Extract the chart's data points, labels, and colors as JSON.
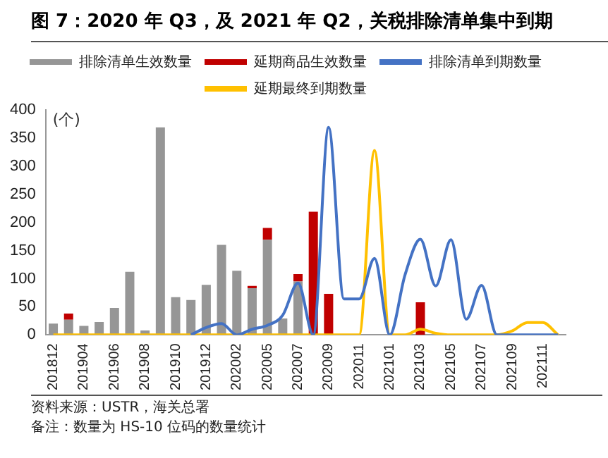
{
  "chart_data": {
    "type": "bar",
    "title": "图 7：2020 年 Q3，及 2021 年 Q2，关税排除清单集中到期",
    "categories": [
      "201812",
      null,
      "201904",
      null,
      "201906",
      null,
      "201908",
      null,
      "201910",
      null,
      "201912",
      null,
      "202002",
      null,
      "202005",
      null,
      "202007",
      null,
      "202009",
      null,
      "202011",
      null,
      "202101",
      null,
      "202103",
      null,
      "202105",
      null,
      "202107",
      null,
      "202109",
      null,
      "202111",
      null
    ],
    "stacked": true,
    "series": [
      {
        "name": "排除清单生效数量",
        "color": "#969696",
        "values": [
          20,
          27,
          16,
          23,
          48,
          112,
          8,
          369,
          67,
          62,
          89,
          160,
          114,
          83,
          169,
          29,
          95,
          0,
          0,
          0,
          0,
          0,
          0,
          0,
          0,
          0,
          0,
          0,
          0,
          0,
          0,
          0,
          0,
          0
        ]
      },
      {
        "name": "延期商品生效数量",
        "color": "#c00000",
        "values": [
          0,
          11,
          0,
          0,
          0,
          0,
          0,
          0,
          0,
          0,
          0,
          0,
          0,
          4,
          21,
          0,
          13,
          219,
          73,
          0,
          0,
          0,
          0,
          0,
          58,
          0,
          0,
          0,
          0,
          0,
          0,
          0,
          0,
          0
        ]
      },
      {
        "name": "排除清单到期数量",
        "type": "line",
        "color": "#4472c4",
        "values": [
          null,
          null,
          null,
          null,
          null,
          null,
          null,
          null,
          null,
          0,
          13,
          20,
          0,
          10,
          17,
          35,
          92,
          0,
          369,
          64,
          64,
          136,
          0,
          107,
          170,
          87,
          169,
          28,
          88,
          0,
          0,
          0,
          0,
          0
        ]
      },
      {
        "name": "延期最终到期数量",
        "type": "line",
        "color": "#ffc000",
        "values": [
          0,
          0,
          0,
          0,
          0,
          0,
          0,
          0,
          0,
          0,
          0,
          0,
          0,
          0,
          0,
          0,
          0,
          0,
          0,
          0,
          0,
          328,
          0,
          0,
          10,
          3,
          0,
          0,
          0,
          0,
          7,
          22,
          22,
          0
        ]
      }
    ],
    "ylim": [
      0,
      400
    ],
    "yticks": [
      0,
      50,
      100,
      150,
      200,
      250,
      300,
      350,
      400
    ],
    "grid": false,
    "legend": "top",
    "marker": "none",
    "line_style": "solid",
    "annotations": [
      "(个)",
      "资料来源：USTR，海关总署",
      "备注：数量为 HS-10 位码的数量统计"
    ]
  }
}
